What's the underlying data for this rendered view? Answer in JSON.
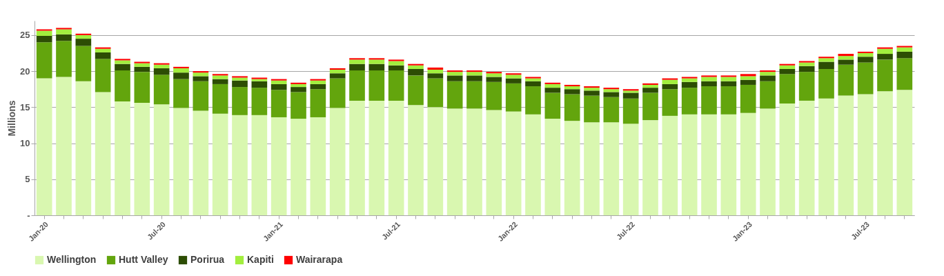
{
  "chart_data": {
    "type": "bar",
    "stacked": true,
    "ylabel": "Millions",
    "grid": "y",
    "legend": "bottom",
    "categories": [
      "Jan-20",
      null,
      null,
      null,
      null,
      null,
      "Jul-20",
      null,
      null,
      null,
      null,
      null,
      "Jan-21",
      null,
      null,
      null,
      null,
      null,
      "Jul-21",
      null,
      null,
      null,
      null,
      null,
      "Jan-22",
      null,
      null,
      null,
      null,
      null,
      "Jul-22",
      null,
      null,
      null,
      null,
      null,
      "Jan-23",
      null,
      null,
      null,
      null,
      null,
      "Jul-23",
      null,
      null
    ],
    "ylim": [
      0,
      27
    ],
    "yticks": [
      {
        "value": 0,
        "label": "-"
      },
      5,
      10,
      15,
      20,
      25
    ],
    "series": [
      {
        "name": "Wellington",
        "color": "#d9f7b0",
        "values": [
          19.0,
          19.2,
          18.6,
          17.1,
          15.8,
          15.6,
          15.4,
          14.9,
          14.5,
          14.1,
          13.9,
          13.9,
          13.6,
          13.4,
          13.6,
          14.9,
          15.9,
          15.9,
          15.9,
          15.3,
          15.0,
          14.8,
          14.8,
          14.6,
          14.4,
          14.0,
          13.4,
          13.1,
          12.9,
          12.9,
          12.7,
          13.2,
          13.8,
          14.0,
          14.0,
          14.0,
          14.2,
          14.8,
          15.5,
          15.9,
          16.2,
          16.6,
          16.8,
          17.2,
          17.4
        ]
      },
      {
        "name": "Hutt Valley",
        "color": "#63a50d",
        "values": [
          5.0,
          5.0,
          4.9,
          4.6,
          4.3,
          4.3,
          4.1,
          4.0,
          4.1,
          4.1,
          3.9,
          3.8,
          3.8,
          3.7,
          3.9,
          4.1,
          4.2,
          4.2,
          4.2,
          4.1,
          4.0,
          3.8,
          3.8,
          3.9,
          3.9,
          3.9,
          3.6,
          3.7,
          3.7,
          3.5,
          3.5,
          3.8,
          3.7,
          3.7,
          3.9,
          3.9,
          3.9,
          3.8,
          4.1,
          4.0,
          4.1,
          4.3,
          4.4,
          4.4,
          4.4
        ]
      },
      {
        "name": "Porirua",
        "color": "#2d4d04",
        "values": [
          0.9,
          0.9,
          1.0,
          0.9,
          0.9,
          0.7,
          0.9,
          0.9,
          0.7,
          0.7,
          0.9,
          0.9,
          0.8,
          0.7,
          0.7,
          0.7,
          0.9,
          0.9,
          0.7,
          0.9,
          0.7,
          0.8,
          0.8,
          0.7,
          0.7,
          0.7,
          0.7,
          0.7,
          0.7,
          0.7,
          0.8,
          0.7,
          0.7,
          0.8,
          0.7,
          0.7,
          0.7,
          0.8,
          0.7,
          0.8,
          1.0,
          0.7,
          0.8,
          0.8,
          0.9
        ]
      },
      {
        "name": "Kapiti",
        "color": "#a2ee3e",
        "values": [
          0.7,
          0.7,
          0.5,
          0.5,
          0.5,
          0.5,
          0.5,
          0.6,
          0.5,
          0.5,
          0.4,
          0.3,
          0.5,
          0.4,
          0.5,
          0.5,
          0.6,
          0.6,
          0.6,
          0.5,
          0.5,
          0.5,
          0.5,
          0.5,
          0.5,
          0.4,
          0.5,
          0.4,
          0.4,
          0.4,
          0.3,
          0.4,
          0.6,
          0.5,
          0.6,
          0.6,
          0.5,
          0.5,
          0.5,
          0.5,
          0.5,
          0.5,
          0.5,
          0.7,
          0.6
        ]
      },
      {
        "name": "Wairarapa",
        "color": "#ff0000",
        "values": [
          0.2,
          0.2,
          0.2,
          0.2,
          0.2,
          0.2,
          0.2,
          0.2,
          0.2,
          0.2,
          0.2,
          0.2,
          0.2,
          0.2,
          0.2,
          0.2,
          0.2,
          0.2,
          0.2,
          0.2,
          0.3,
          0.2,
          0.2,
          0.2,
          0.2,
          0.2,
          0.2,
          0.2,
          0.2,
          0.2,
          0.2,
          0.2,
          0.2,
          0.2,
          0.2,
          0.2,
          0.3,
          0.2,
          0.2,
          0.2,
          0.2,
          0.3,
          0.2,
          0.2,
          0.2
        ]
      }
    ]
  }
}
